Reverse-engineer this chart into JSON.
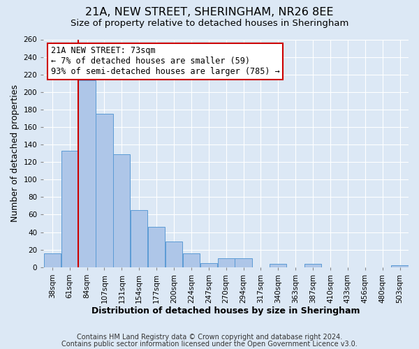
{
  "title": "21A, NEW STREET, SHERINGHAM, NR26 8EE",
  "subtitle": "Size of property relative to detached houses in Sheringham",
  "xlabel": "Distribution of detached houses by size in Sheringham",
  "ylabel": "Number of detached properties",
  "categories": [
    "38sqm",
    "61sqm",
    "84sqm",
    "107sqm",
    "131sqm",
    "154sqm",
    "177sqm",
    "200sqm",
    "224sqm",
    "247sqm",
    "270sqm",
    "294sqm",
    "317sqm",
    "340sqm",
    "363sqm",
    "387sqm",
    "410sqm",
    "433sqm",
    "456sqm",
    "480sqm",
    "503sqm"
  ],
  "values": [
    16,
    133,
    213,
    175,
    129,
    65,
    46,
    29,
    16,
    5,
    10,
    10,
    0,
    4,
    0,
    4,
    0,
    0,
    0,
    0,
    2
  ],
  "bar_color": "#aec6e8",
  "bar_edge_color": "#5b9bd5",
  "vline_x_idx": 1.5,
  "marker_label": "21A NEW STREET: 73sqm",
  "annotation_line1": "← 7% of detached houses are smaller (59)",
  "annotation_line2": "93% of semi-detached houses are larger (785) →",
  "vline_color": "#cc0000",
  "annotation_box_edge_color": "#cc0000",
  "ylim": [
    0,
    260
  ],
  "yticks": [
    0,
    20,
    40,
    60,
    80,
    100,
    120,
    140,
    160,
    180,
    200,
    220,
    240,
    260
  ],
  "fig_background_color": "#dce8f5",
  "plot_background_color": "#dce8f5",
  "grid_color": "#ffffff",
  "title_fontsize": 11.5,
  "subtitle_fontsize": 9.5,
  "axis_label_fontsize": 9,
  "tick_fontsize": 7.5,
  "footer_fontsize": 7,
  "annotation_fontsize": 8.5
}
